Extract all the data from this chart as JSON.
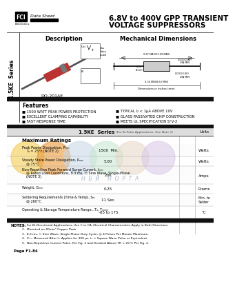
{
  "bg_color": "#ffffff",
  "title_line1": "6.8V to 400V GPP TRANSIENT",
  "title_line2": "VOLTAGE SUPPRESSORS",
  "fci_text": "FCI",
  "datasheet_text": "Data Sheet",
  "electronics_text": "Electronics",
  "description_label": "Description",
  "mech_dim_label": "Mechanical Dimensions",
  "package_label": "DO-201AE",
  "series_text": "1.5KE  Series",
  "features_title": "Features",
  "features_left": [
    "■ 1500 WATT PEAK POWER PROTECTION",
    "■ EXCELLENT CLAMPING CAPABILITY",
    "■ FAST RESPONSE TIME"
  ],
  "features_right": [
    "■ TYPICAL I₂ < 1μA ABOVE 10V",
    "■ GLASS PASSIVATED CHIP CONSTRUCTION",
    "■ MEETS UL SPECIFICATION S°V-2"
  ],
  "table_col1": "1.5KE  Series",
  "table_col2": "(For Bi-Polar Applications, See Note 1)",
  "table_col3": "Units",
  "max_ratings": "Maximum Ratings",
  "rows": [
    {
      "param": "Peak Power Dissipation, Pₘₘ",
      "param2": "Tₐ = 25°c (NOTE 2)",
      "param3": "",
      "value": "1500  Min.",
      "unit": "Watts"
    },
    {
      "param": "Steady State Power Dissipation, Pₘₘ",
      "param2": "@ 75°C",
      "param3": "",
      "value": "5.00",
      "unit": "Watts"
    },
    {
      "param": "Non-Repetitive Peak Forward Surge Current, Iₘₘ",
      "param2": "@ Rated Load Conditions, 8.3 ms, ½ Sine Wave, Single-Phase",
      "param3": "(NOTE 3)",
      "value": "200",
      "unit": "Amps"
    },
    {
      "param": "Weight, Gₘₘ",
      "param2": "",
      "param3": "",
      "value": "0.25",
      "unit": "Grams"
    },
    {
      "param": "Soldering Requirements (Time & Temp), Sₘ",
      "param2": "@ 260°C",
      "param3": "",
      "value": "11 Sec.",
      "unit": "Min. to\nSolder"
    },
    {
      "param": "Operating & Storage Temperature Range...Tₐ, Tₘₘₘ",
      "param2": "",
      "param3": "",
      "value": "-65 to 175",
      "unit": "°C"
    }
  ],
  "notes_label": "NOTES:",
  "notes": [
    "1.  For Bi-Directional Applications, Use C or CA. Electrical Characteristics Apply in Both Directions.",
    "2.  Mounted on 40mm² Copper Pads.",
    "3.  8.3 ms, ½ Sine Wave, Single Phase Duty Cycle, @ 4 Pulses Per Minute Maximum.",
    "4.  Vₘₘ Measured After Iₘ Applies for 300 μs, tₐ = Square Wave Pulse or Equivalent.",
    "5.  Non-Repetitive Current Pulse: Per Fig. 3 and Derated Above TR = 25°C Per Fig. 2."
  ],
  "page_text": "Page F1-84",
  "wm_text": "Н  Б  Й     Н  О  Р  Т  А",
  "wm_colors": [
    "#f5c842",
    "#e8912a",
    "#c8d8e8",
    "#c8e8d0",
    "#e8d8c8",
    "#d8c8e8"
  ]
}
